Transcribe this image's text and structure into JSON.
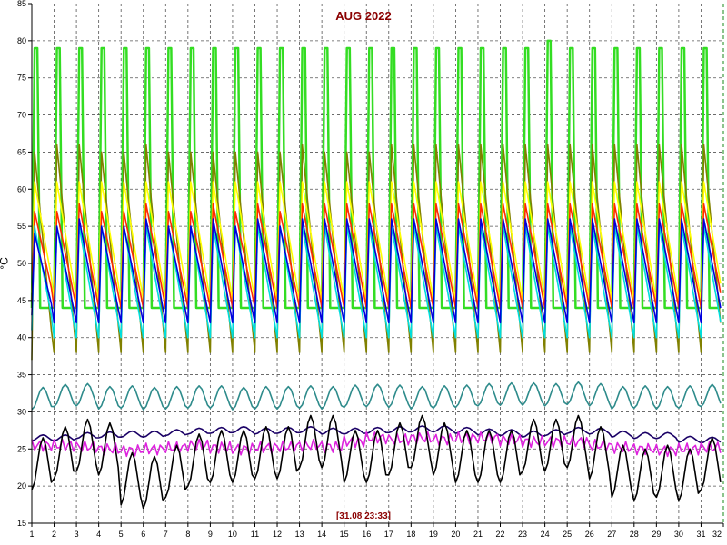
{
  "header": {
    "title": "AUG 2022"
  },
  "footer": {
    "cursor_readout": "[31.08 23:33]"
  },
  "chart_data": {
    "type": "line",
    "title": "AUG 2022",
    "ylabel": "°C",
    "xlabel": "",
    "x_ticks": [
      "1",
      "2",
      "3",
      "4",
      "5",
      "6",
      "7",
      "8",
      "9",
      "10",
      "11",
      "12",
      "13",
      "14",
      "15",
      "16",
      "17",
      "18",
      "19",
      "20",
      "21",
      "22",
      "23",
      "24",
      "25",
      "26",
      "27",
      "28",
      "29",
      "30",
      "31",
      "32"
    ],
    "y_ticks": [
      "15",
      "20",
      "25",
      "30",
      "35",
      "40",
      "45",
      "50",
      "55",
      "60",
      "65",
      "70",
      "75",
      "80",
      "85"
    ],
    "xlim": [
      1,
      32
    ],
    "ylim": [
      15,
      85
    ],
    "grid": true,
    "legend": "none",
    "series": [
      {
        "color": "#33dd22",
        "shape": "spike",
        "base": 44,
        "peak": [
          79,
          79,
          79,
          79,
          79,
          79,
          79,
          79,
          79,
          79,
          79,
          79,
          79,
          79,
          79,
          79,
          79,
          79,
          79,
          79,
          79,
          79,
          79,
          80,
          79,
          79,
          79,
          79,
          79,
          79,
          79
        ]
      },
      {
        "color": "#808000",
        "shape": "saw",
        "peak": [
          65,
          66,
          66,
          65,
          65,
          66,
          65,
          65,
          65,
          65,
          65,
          65,
          66,
          65,
          65,
          65,
          66,
          66,
          66,
          66,
          66,
          66,
          66,
          66,
          66,
          66,
          66,
          66,
          66,
          66,
          66
        ],
        "trough": [
          37,
          38,
          38,
          38,
          38,
          38,
          38,
          38,
          38,
          38,
          38,
          38,
          38,
          38,
          38,
          38,
          38,
          38,
          38,
          38,
          38,
          38,
          38,
          38,
          38,
          38,
          38,
          38,
          38,
          38,
          38
        ]
      },
      {
        "color": "#ffff00",
        "shape": "saw",
        "peak": [
          61,
          61,
          61,
          61,
          61,
          61,
          61,
          61,
          61,
          61,
          61,
          61,
          61,
          61,
          61,
          61,
          61,
          61,
          61,
          61,
          61,
          61,
          61,
          61,
          61,
          61,
          61,
          61,
          61,
          61,
          61
        ],
        "trough": [
          46,
          45,
          45,
          45,
          45,
          45,
          45,
          45,
          45,
          45,
          45,
          45,
          45,
          45,
          45,
          45,
          45,
          45,
          45,
          45,
          45,
          45,
          45,
          45,
          45,
          45,
          45,
          45,
          45,
          45,
          45
        ]
      },
      {
        "color": "#ff2a00",
        "shape": "saw",
        "peak": [
          57,
          57,
          58,
          57,
          57,
          58,
          57,
          57,
          58,
          57,
          58,
          57,
          58,
          58,
          58,
          58,
          58,
          58,
          58,
          58,
          58,
          58,
          58,
          58,
          58,
          58,
          58,
          58,
          58,
          58,
          58
        ],
        "trough": [
          45,
          44,
          44,
          44,
          44,
          44,
          44,
          44,
          44,
          44,
          44,
          44,
          44,
          44,
          44,
          44,
          44,
          44,
          44,
          44,
          44,
          44,
          44,
          44,
          44,
          44,
          44,
          44,
          44,
          44,
          44
        ]
      },
      {
        "color": "#00dddd",
        "shape": "saw",
        "peak": [
          55,
          55,
          55,
          55,
          55,
          55,
          55,
          55,
          55,
          55,
          55,
          55,
          55,
          55,
          55,
          55,
          55,
          55,
          55,
          55,
          55,
          55,
          55,
          55,
          55,
          55,
          55,
          55,
          55,
          55,
          55
        ],
        "trough": [
          41,
          40,
          40,
          40,
          40,
          40,
          40,
          40,
          40,
          40,
          40,
          40,
          40,
          40,
          40,
          40,
          40,
          40,
          40,
          40,
          40,
          40,
          40,
          40,
          40,
          40,
          40,
          40,
          40,
          40,
          40
        ]
      },
      {
        "color": "#0000dd",
        "shape": "saw",
        "peak": [
          54,
          55,
          56,
          55,
          55,
          56,
          55,
          55,
          56,
          55,
          56,
          55,
          56,
          56,
          56,
          56,
          56,
          56,
          56,
          56,
          56,
          56,
          56,
          56,
          56,
          56,
          56,
          56,
          56,
          56,
          56
        ],
        "trough": [
          43,
          42,
          42,
          42,
          42,
          42,
          42,
          42,
          42,
          42,
          42,
          42,
          42,
          42,
          42,
          42,
          42,
          42,
          42,
          42,
          42,
          42,
          42,
          42,
          42,
          42,
          42,
          42,
          42,
          42,
          42
        ]
      },
      {
        "color": "#2e8b8b",
        "shape": "wave",
        "mean": [
          31.8,
          32.2,
          32.3,
          31.9,
          32.0,
          31.8,
          31.9,
          32.0,
          32.0,
          31.8,
          31.9,
          31.9,
          32.0,
          31.9,
          32.1,
          32.2,
          32.1,
          31.9,
          32.0,
          32.1,
          32.3,
          32.4,
          32.4,
          32.3,
          32.5,
          32.3,
          31.9,
          32.0,
          31.9,
          32.0,
          32.2
        ],
        "amp": 1.5
      },
      {
        "color": "#1a0066",
        "shape": "wave",
        "mean": [
          26.5,
          26.5,
          26.8,
          26.9,
          27.0,
          27.0,
          27.2,
          27.4,
          27.5,
          27.6,
          27.4,
          27.5,
          27.6,
          27.4,
          27.4,
          27.5,
          27.6,
          27.7,
          27.7,
          27.5,
          27.3,
          27.2,
          27.0,
          27.2,
          27.5,
          27.4,
          27.0,
          26.8,
          26.8,
          26.3,
          26.2
        ],
        "amp": 0.4
      },
      {
        "color": "#dd22dd",
        "shape": "noise",
        "mean": [
          25.5,
          25.5,
          25.3,
          25.0,
          24.8,
          25.0,
          25.2,
          25.5,
          25.2,
          25.0,
          25.2,
          25.3,
          25.5,
          25.3,
          26.0,
          26.5,
          26.3,
          26.5,
          26.3,
          26.5,
          26.5,
          26.2,
          26.0,
          26.0,
          26.0,
          25.5,
          25.2,
          25.0,
          24.8,
          25.0,
          25.2
        ],
        "amp": 0.8
      },
      {
        "color": "#000000",
        "shape": "wave",
        "mean": [
          23.0,
          24.5,
          25.5,
          25.0,
          21.0,
          20.5,
          22.0,
          23.5,
          24.0,
          24.0,
          24.5,
          24.5,
          26.0,
          26.0,
          24.0,
          24.0,
          25.0,
          26.0,
          25.0,
          24.0,
          24.0,
          24.0,
          25.5,
          25.5,
          26.0,
          24.5,
          22.0,
          21.5,
          22.0,
          21.5,
          23.0
        ],
        "amp": 3.5
      }
    ]
  }
}
